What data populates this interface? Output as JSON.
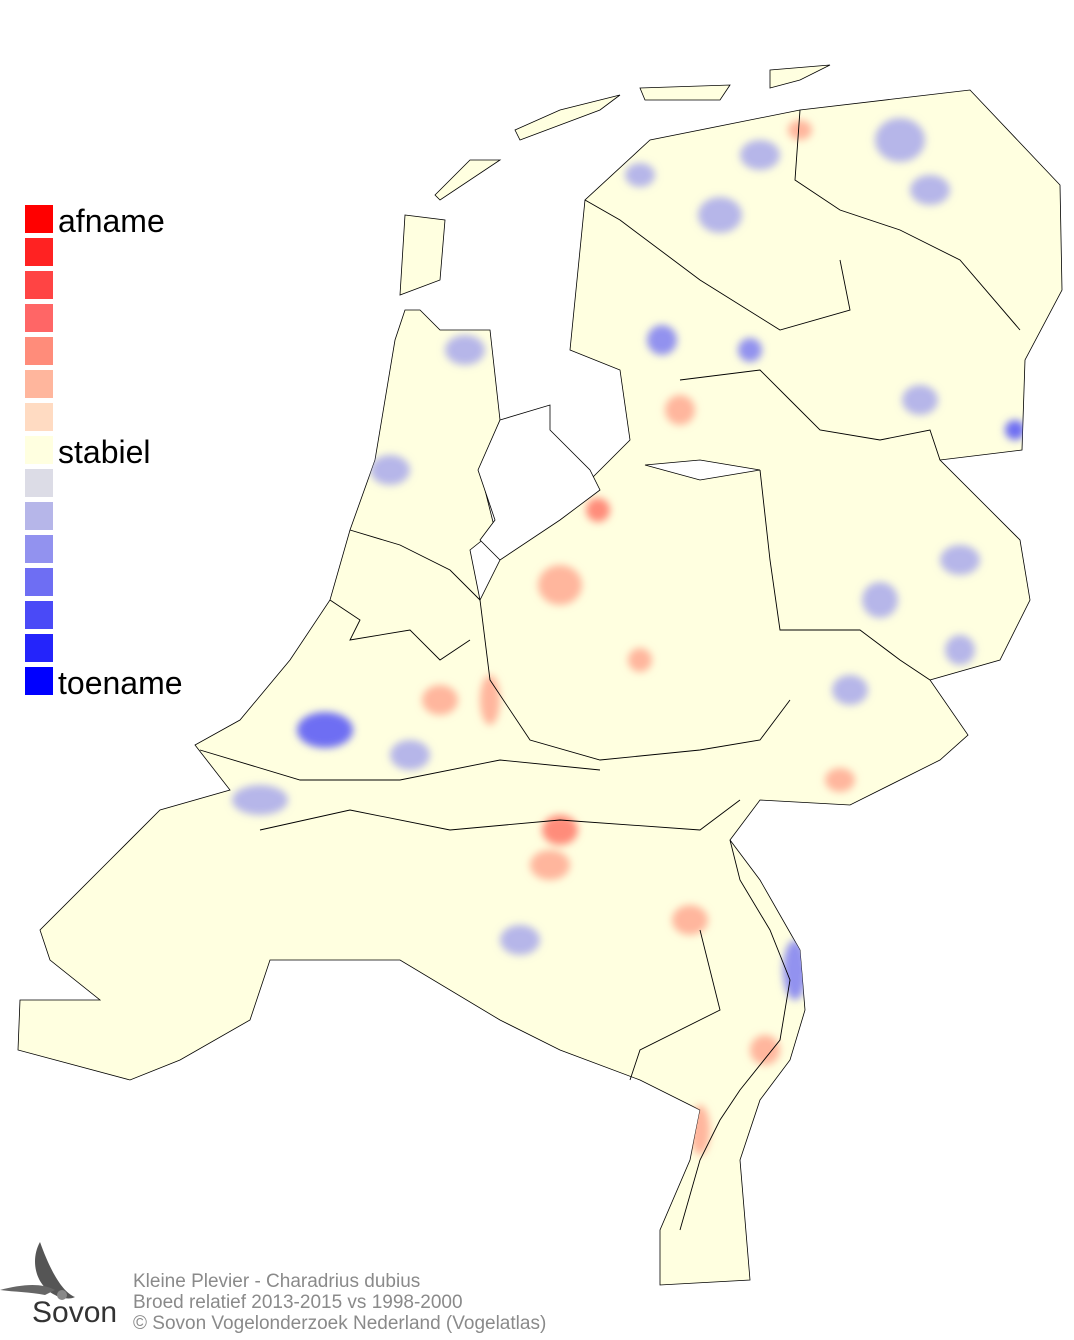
{
  "legend": {
    "labels": {
      "top": "afname",
      "middle": "stabiel",
      "bottom": "toename"
    },
    "colors": [
      "#ff0000",
      "#ff2222",
      "#ff4444",
      "#ff6666",
      "#ff8c7a",
      "#ffb69d",
      "#ffdbc2",
      "#ffffe0",
      "#dcdce6",
      "#b6b6e9",
      "#9292ef",
      "#6e6ef3",
      "#4a4af7",
      "#2424fb",
      "#0000ff"
    ]
  },
  "map": {
    "base_color": "#ffffe0",
    "border_color": "#000000"
  },
  "footer": {
    "species": "Kleine Plevier - Charadrius dubius",
    "subtitle": "Broed relatief 2013-2015 vs 1998-2000",
    "copyright": "© Sovon Vogelonderzoek Nederland (Vogelatlas)"
  },
  "logo": {
    "text": "Sovon"
  }
}
